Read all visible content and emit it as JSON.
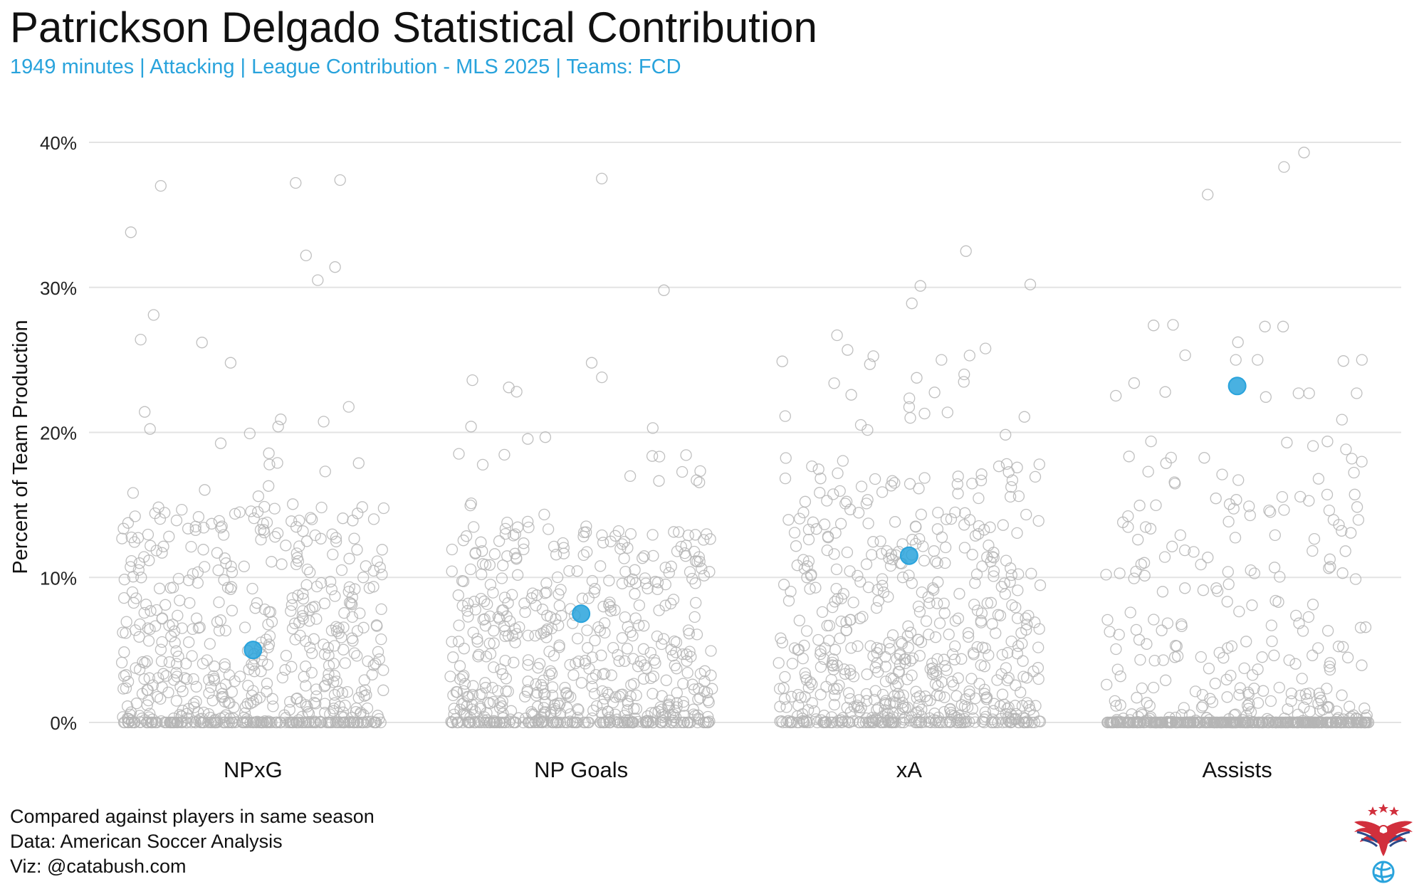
{
  "header": {
    "title": "Patrickson Delgado Statistical Contribution",
    "subtitle": "1949 minutes | Attacking | League Contribution - MLS 2025 | Teams: FCD"
  },
  "caption": {
    "line1": "Compared against players in same season",
    "line2": "Data: American Soccer Analysis",
    "line3": "Viz: @catabush.com"
  },
  "colors": {
    "highlight": "#29a3dc",
    "points": "#b5b5b5",
    "grid": "#e3e3e3",
    "subtitle": "#29a3dc"
  },
  "logo_icon": "eagle-soccer-logo-icon",
  "chart_data": {
    "type": "scatter",
    "subtype": "jittered strip plot",
    "title": "Patrickson Delgado Statistical Contribution",
    "xlabel": "",
    "ylabel": "Percent of Team Production",
    "ylim": [
      0,
      40
    ],
    "yticks": [
      0,
      10,
      20,
      30,
      40
    ],
    "ytick_labels": [
      "0%",
      "10%",
      "20%",
      "30%",
      "40%"
    ],
    "grid": true,
    "categories": [
      "NPxG",
      "NP Goals",
      "xA",
      "Assists"
    ],
    "highlight": {
      "name": "Patrickson Delgado",
      "values": [
        5.0,
        7.5,
        11.5,
        23.2
      ]
    },
    "comparison": {
      "name": "Players in same season",
      "approx_count_per_category": 650,
      "notable_values": {
        "NPxG": [
          37.4,
          37.2,
          37.0,
          33.8,
          32.2,
          31.4,
          30.5,
          28.1,
          26.4,
          26.2,
          24.8,
          20.9,
          20.4
        ],
        "NP Goals": [
          37.5,
          29.8,
          24.8,
          23.8,
          23.6,
          23.1,
          22.8,
          20.4,
          20.3
        ],
        "xA": [
          32.5,
          30.2,
          30.1,
          28.9,
          26.7,
          25.3,
          25.0,
          24.9,
          24.7,
          24.0,
          21.3,
          21.0
        ],
        "Assists": [
          39.3,
          38.3,
          36.4,
          27.3,
          27.3,
          25.0,
          25.0,
          25.0,
          23.4,
          22.7,
          22.7,
          22.7
        ]
      }
    }
  }
}
